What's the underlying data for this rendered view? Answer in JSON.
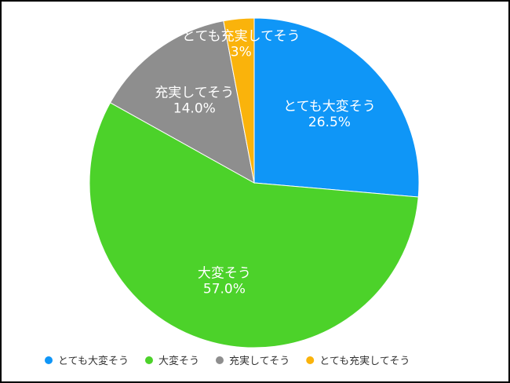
{
  "chart_data": {
    "type": "pie",
    "title": "",
    "legend_position": "bottom",
    "slices": [
      {
        "label": "とても大変そう",
        "value": 26.5,
        "display": "26.5%",
        "color": "#0F96F7"
      },
      {
        "label": "大変そう",
        "value": 57.0,
        "display": "57.0%",
        "color": "#4CD22A"
      },
      {
        "label": "充実してそう",
        "value": 14.0,
        "display": "14.0%",
        "color": "#8E8E8E"
      },
      {
        "label": "とても充実してそう",
        "value": 3,
        "display": "3%",
        "color": "#FAB30B"
      }
    ]
  }
}
